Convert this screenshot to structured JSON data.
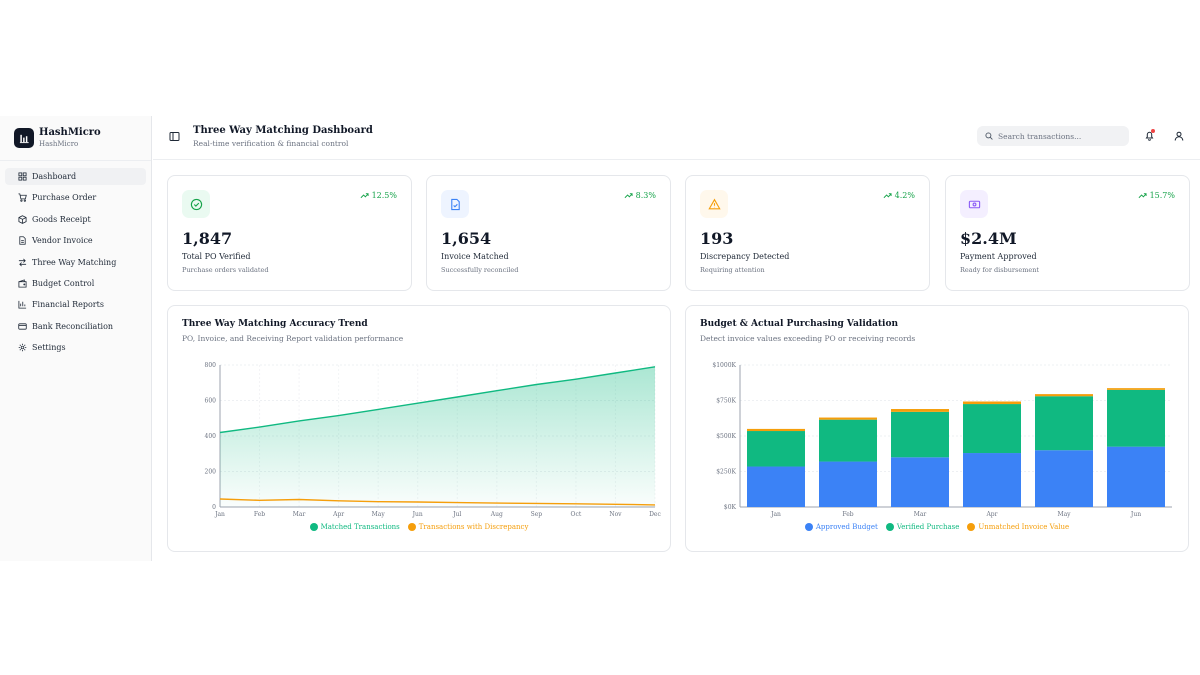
{
  "brand": {
    "name": "HashMicro",
    "sub": "HashMicro"
  },
  "sidebar": {
    "items": [
      {
        "label": "Dashboard",
        "icon": "grid-icon",
        "active": true
      },
      {
        "label": "Purchase Order",
        "icon": "cart-icon"
      },
      {
        "label": "Goods Receipt",
        "icon": "package-icon"
      },
      {
        "label": "Vendor Invoice",
        "icon": "file-icon"
      },
      {
        "label": "Three Way Matching",
        "icon": "transfer-icon"
      },
      {
        "label": "Budget Control",
        "icon": "wallet-icon"
      },
      {
        "label": "Financial Reports",
        "icon": "bar-chart-icon"
      },
      {
        "label": "Bank Reconciliation",
        "icon": "card-icon"
      },
      {
        "label": "Settings",
        "icon": "gear-icon"
      }
    ]
  },
  "header": {
    "title": "Three Way Matching Dashboard",
    "subtitle": "Real-time verification & financial control",
    "search_placeholder": "Search transactions..."
  },
  "kpis": [
    {
      "value": "1,847",
      "label": "Total PO Verified",
      "desc": "Purchase orders validated",
      "trend": "12.5%",
      "color": "#16a34a",
      "bg": "#eafaf1",
      "icon": "check-circle-icon"
    },
    {
      "value": "1,654",
      "label": "Invoice Matched",
      "desc": "Successfully reconciled",
      "trend": "8.3%",
      "color": "#3b82f6",
      "bg": "#eef4ff",
      "icon": "file-check-icon"
    },
    {
      "value": "193",
      "label": "Discrepancy Detected",
      "desc": "Requiring attention",
      "trend": "4.2%",
      "color": "#f59e0b",
      "bg": "#fff8ec",
      "icon": "warning-icon"
    },
    {
      "value": "$2.4M",
      "label": "Payment Approved",
      "desc": "Ready for disbursement",
      "trend": "15.7%",
      "color": "#8b5cf6",
      "bg": "#f4efff",
      "icon": "money-icon"
    }
  ],
  "charts": {
    "accuracy": {
      "title": "Three Way Matching Accuracy Trend",
      "subtitle": "PO, Invoice, and Receiving Report validation performance"
    },
    "budget": {
      "title": "Budget & Actual Purchasing Validation",
      "subtitle": "Detect invoice values exceeding PO or receiving records"
    }
  },
  "chart_data": [
    {
      "type": "area",
      "title": "Three Way Matching Accuracy Trend",
      "x": [
        "Jan",
        "Feb",
        "Mar",
        "Apr",
        "May",
        "Jun",
        "Jul",
        "Aug",
        "Sep",
        "Oct",
        "Nov",
        "Dec"
      ],
      "ylim": [
        0,
        800
      ],
      "yticks": [
        "0",
        "200",
        "400",
        "600",
        "800"
      ],
      "grid": true,
      "legend": "bottom",
      "series": [
        {
          "name": "Matched Transactions",
          "color": "#10b981",
          "values": [
            420,
            450,
            485,
            515,
            550,
            585,
            620,
            655,
            690,
            720,
            755,
            790
          ]
        },
        {
          "name": "Transactions with Discrepancy",
          "color": "#f59e0b",
          "values": [
            45,
            38,
            42,
            35,
            30,
            28,
            25,
            22,
            20,
            18,
            15,
            12
          ]
        }
      ]
    },
    {
      "type": "bar",
      "title": "Budget & Actual Purchasing Validation",
      "categories": [
        "Jan",
        "Feb",
        "Mar",
        "Apr",
        "May",
        "Jun"
      ],
      "ylim": [
        0,
        1000
      ],
      "yticks": [
        "$0K",
        "$250K",
        "$500K",
        "$750K",
        "$1000K"
      ],
      "stacked": true,
      "grid": true,
      "legend": "bottom",
      "series": [
        {
          "name": "Approved Budget",
          "color": "#3b82f6",
          "values": [
            285,
            320,
            350,
            380,
            400,
            425
          ]
        },
        {
          "name": "Verified Purchase",
          "color": "#10b981",
          "values": [
            250,
            295,
            320,
            345,
            380,
            400
          ]
        },
        {
          "name": "Unmatched Invoice Value",
          "color": "#f59e0b",
          "values": [
            15,
            15,
            20,
            18,
            15,
            12
          ]
        }
      ]
    }
  ]
}
